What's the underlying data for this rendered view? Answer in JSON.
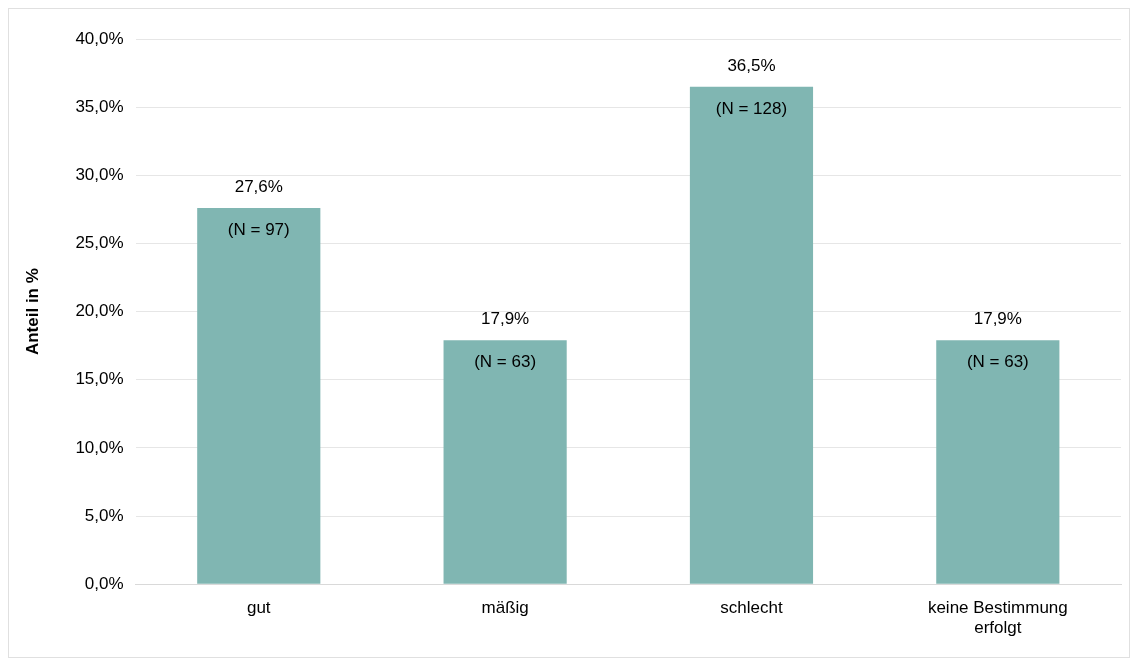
{
  "chart_data": {
    "type": "bar",
    "ylabel": "Anteil in %",
    "categories": [
      "gut",
      "mäßig",
      "schlecht",
      "keine Bestimmung erfolgt"
    ],
    "values": [
      27.6,
      17.9,
      36.5,
      17.9
    ],
    "color": "#80b6b2",
    "value_labels": [
      "27,6%",
      "17,9%",
      "36,5%",
      "17,9%"
    ],
    "annotations": [
      {
        "text": "(N = 97)",
        "x": "gut",
        "y": 27.6
      },
      {
        "text": "(N = 63)",
        "x": "mäßig",
        "y": 17.9
      },
      {
        "text": "(N = 128)",
        "x": "schlecht",
        "y": 36.5
      },
      {
        "text": "(N = 63)",
        "x": "keine Bestimmung erfolgt",
        "y": 17.9
      }
    ],
    "ylim": [
      0,
      40
    ],
    "yticks": [
      {
        "value": 0,
        "label": "0,0%"
      },
      {
        "value": 5,
        "label": "5,0%"
      },
      {
        "value": 10,
        "label": "10,0%"
      },
      {
        "value": 15,
        "label": "15,0%"
      },
      {
        "value": 20,
        "label": "20,0%"
      },
      {
        "value": 25,
        "label": "25,0%"
      },
      {
        "value": 30,
        "label": "30,0%"
      },
      {
        "value": 35,
        "label": "35,0%"
      },
      {
        "value": 40,
        "label": "40,0%"
      }
    ],
    "grid": "y",
    "legend": false
  }
}
